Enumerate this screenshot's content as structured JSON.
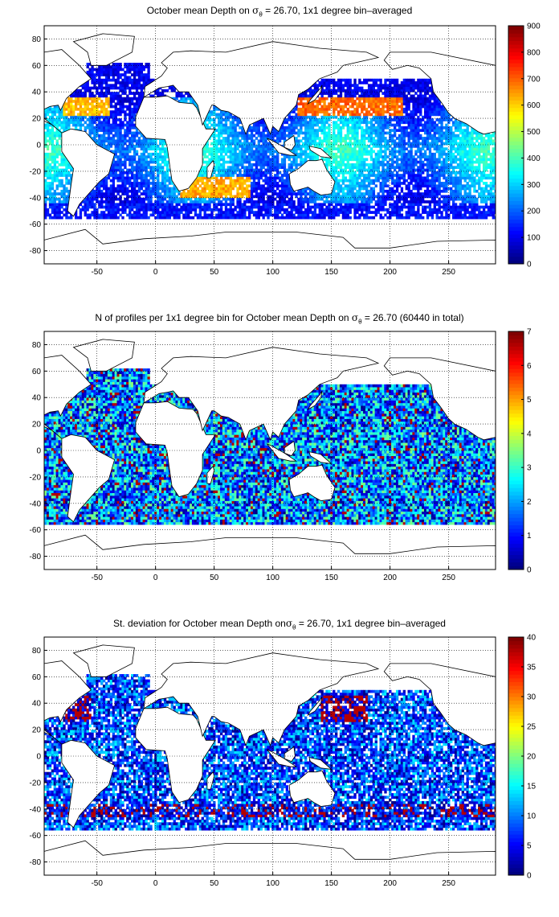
{
  "panels": [
    {
      "id": "mean-depth",
      "title_before": "October mean Depth on ",
      "title_sigma": "σ",
      "title_sub": "θ",
      "title_after": " = 26.70, 1x1 degree bin–averaged",
      "colorbar_ticks": [
        "0",
        "100",
        "200",
        "300",
        "400",
        "500",
        "600",
        "700",
        "800",
        "900"
      ]
    },
    {
      "id": "profile-count",
      "title_before": "N of profiles per 1x1 degree bin for October mean Depth on ",
      "title_sigma": "σ",
      "title_sub": "θ",
      "title_after": " = 26.70 (60440 in total)",
      "colorbar_ticks": [
        "0",
        "1",
        "2",
        "3",
        "4",
        "5",
        "6",
        "7"
      ]
    },
    {
      "id": "std-deviation",
      "title_before": "St. deviation for October mean Depth on",
      "title_sigma": "σ",
      "title_sub": "θ",
      "title_after": " = 26.70, 1x1 degree bin–averaged",
      "colorbar_ticks": [
        "0",
        "5",
        "10",
        "15",
        "20",
        "25",
        "30",
        "35",
        "40"
      ]
    }
  ],
  "axes": {
    "x_ticks": [
      "-50",
      "0",
      "50",
      "100",
      "150",
      "200",
      "250"
    ],
    "y_ticks": [
      "80",
      "60",
      "40",
      "20",
      "0",
      "-20",
      "-40",
      "-60",
      "-80"
    ]
  },
  "colormap": "jet"
}
